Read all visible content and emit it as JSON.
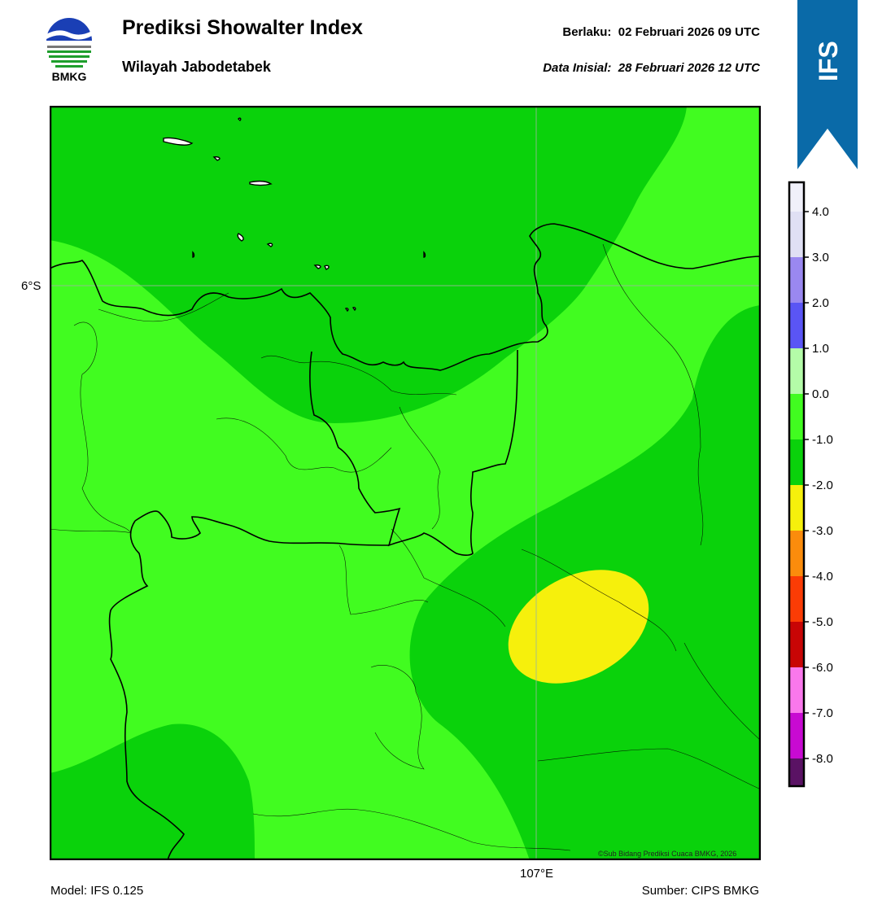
{
  "header": {
    "logo_text": "BMKG",
    "title": "Prediksi Showalter Index",
    "subtitle": "Wilayah Jabodetabek",
    "valid_label": "Berlaku:",
    "valid_value": "02 Februari 2026 09 UTC",
    "initial_label": "Data Inisial:",
    "initial_value": "28 Februari 2026 12 UTC",
    "model_badge": "IFS"
  },
  "map": {
    "lat_label": "6°S",
    "lon_label": "107°E",
    "copyright": "©Sub Bidang Prediksi Cuaca BMKG, 2026",
    "field_colors": {
      "dark_green": "#0ad20b",
      "light_green": "#41fc20",
      "yellow": "#f6f00c"
    }
  },
  "colorbar": {
    "tick_labels": [
      "4.0",
      "3.0",
      "2.0",
      "1.0",
      "0.0",
      "-1.0",
      "-2.0",
      "-3.0",
      "-4.0",
      "-5.0",
      "-6.0",
      "-7.0",
      "-8.0"
    ],
    "colors": [
      "#f0f0fa",
      "#e0e0f4",
      "#9a88f0",
      "#5a55f5",
      "#b4fca8",
      "#41fc20",
      "#0ad20b",
      "#f6f00c",
      "#fb8c0c",
      "#fb3c05",
      "#c80505",
      "#fa78ec",
      "#c80ad2",
      "#5a1264"
    ]
  },
  "footer": {
    "model": "Model: IFS 0.125",
    "source": "Sumber: CIPS BMKG"
  }
}
